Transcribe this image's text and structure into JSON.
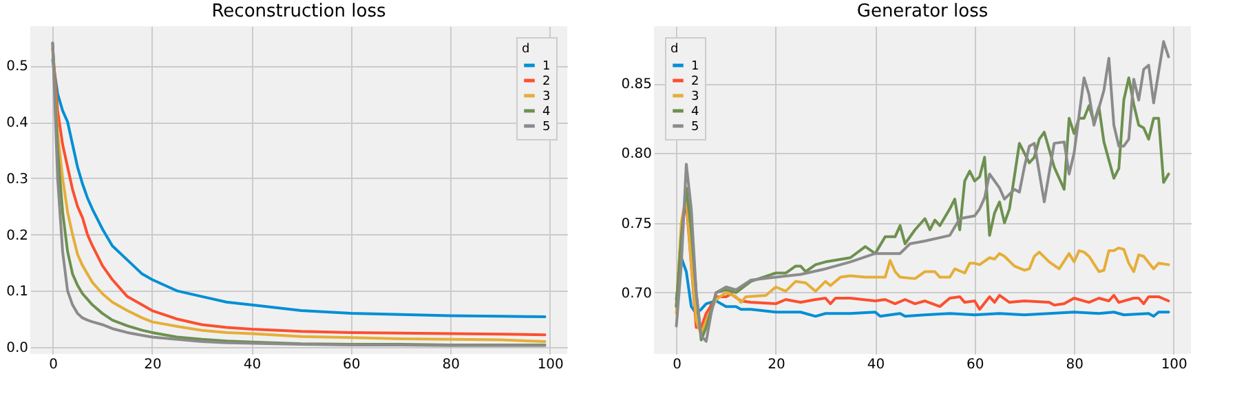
{
  "chart_data": [
    {
      "type": "line",
      "title": "Reconstruction loss",
      "legend_title": "d",
      "legend": "top right",
      "grid": true,
      "marker": "none",
      "line_style": "solid",
      "xlim": [
        -4.5,
        103.5
      ],
      "xticks": [
        0,
        20,
        40,
        60,
        80,
        100
      ],
      "ylim": [
        -0.012,
        0.57
      ],
      "yticks": [
        {
          "value": 0,
          "label": "0.0"
        },
        0.1,
        0.2,
        0.3,
        0.4,
        0.5
      ],
      "series": [
        {
          "name": "1",
          "color": "#008fd5",
          "x": [
            0,
            1,
            2,
            3,
            4,
            5,
            6,
            7,
            8,
            10,
            12,
            15,
            18,
            20,
            25,
            30,
            35,
            40,
            50,
            60,
            70,
            80,
            90,
            99
          ],
          "values": [
            0.51,
            0.45,
            0.42,
            0.4,
            0.36,
            0.32,
            0.29,
            0.265,
            0.245,
            0.21,
            0.18,
            0.155,
            0.13,
            0.12,
            0.1,
            0.09,
            0.08,
            0.075,
            0.065,
            0.06,
            0.058,
            0.056,
            0.055,
            0.054
          ]
        },
        {
          "name": "2",
          "color": "#fc4f30",
          "x": [
            0,
            1,
            2,
            3,
            4,
            5,
            6,
            7,
            8,
            10,
            12,
            15,
            18,
            20,
            25,
            30,
            35,
            40,
            50,
            60,
            70,
            80,
            90,
            99
          ],
          "values": [
            0.53,
            0.42,
            0.36,
            0.32,
            0.28,
            0.25,
            0.23,
            0.2,
            0.18,
            0.145,
            0.12,
            0.09,
            0.075,
            0.065,
            0.05,
            0.04,
            0.035,
            0.032,
            0.028,
            0.026,
            0.025,
            0.024,
            0.023,
            0.022
          ]
        },
        {
          "name": "3",
          "color": "#e5ae38",
          "x": [
            0,
            1,
            2,
            3,
            4,
            5,
            6,
            7,
            8,
            10,
            12,
            15,
            18,
            20,
            25,
            30,
            35,
            40,
            50,
            60,
            70,
            80,
            90,
            99
          ],
          "values": [
            0.53,
            0.38,
            0.3,
            0.24,
            0.2,
            0.165,
            0.145,
            0.13,
            0.115,
            0.095,
            0.08,
            0.065,
            0.052,
            0.045,
            0.037,
            0.03,
            0.026,
            0.024,
            0.019,
            0.017,
            0.015,
            0.014,
            0.013,
            0.01
          ]
        },
        {
          "name": "4",
          "color": "#6d904f",
          "x": [
            0,
            1,
            2,
            3,
            4,
            5,
            6,
            7,
            8,
            10,
            12,
            15,
            18,
            20,
            25,
            30,
            35,
            40,
            50,
            60,
            70,
            80,
            90,
            99
          ],
          "values": [
            0.54,
            0.35,
            0.24,
            0.17,
            0.13,
            0.11,
            0.095,
            0.085,
            0.075,
            0.06,
            0.048,
            0.038,
            0.03,
            0.026,
            0.018,
            0.014,
            0.011,
            0.009,
            0.006,
            0.005,
            0.005,
            0.004,
            0.004,
            0.004
          ]
        },
        {
          "name": "5",
          "color": "#8b8b8b",
          "x": [
            0,
            1,
            2,
            3,
            4,
            5,
            6,
            7,
            8,
            10,
            12,
            15,
            18,
            20,
            25,
            30,
            35,
            40,
            50,
            60,
            70,
            80,
            90,
            99
          ],
          "values": [
            0.54,
            0.3,
            0.17,
            0.1,
            0.075,
            0.06,
            0.052,
            0.048,
            0.045,
            0.04,
            0.033,
            0.026,
            0.021,
            0.018,
            0.014,
            0.01,
            0.008,
            0.007,
            0.005,
            0.004,
            0.004,
            0.003,
            0.003,
            0.003
          ]
        }
      ]
    },
    {
      "type": "line",
      "title": "Generator loss",
      "legend_title": "d",
      "legend": "top left",
      "grid": true,
      "marker": "none",
      "line_style": "solid",
      "xlim": [
        -4.5,
        103.5
      ],
      "xticks": [
        0,
        20,
        40,
        60,
        80,
        100
      ],
      "ylim": [
        0.656,
        0.891
      ],
      "yticks": [
        {
          "value": 0.7,
          "label": "0.70"
        },
        0.75,
        {
          "value": 0.8,
          "label": "0.80"
        },
        0.85
      ],
      "series": [
        {
          "name": "1",
          "color": "#008fd5",
          "x": [
            0,
            1,
            2,
            3,
            4,
            5,
            6,
            8,
            10,
            12,
            13,
            15,
            20,
            22,
            25,
            28,
            30,
            35,
            40,
            41,
            45,
            46,
            50,
            55,
            60,
            65,
            70,
            75,
            80,
            85,
            88,
            90,
            95,
            96,
            97,
            99
          ],
          "values": [
            0.695,
            0.725,
            0.715,
            0.69,
            0.685,
            0.688,
            0.692,
            0.694,
            0.69,
            0.69,
            0.688,
            0.688,
            0.686,
            0.686,
            0.686,
            0.683,
            0.685,
            0.685,
            0.686,
            0.683,
            0.685,
            0.683,
            0.684,
            0.685,
            0.684,
            0.685,
            0.684,
            0.685,
            0.686,
            0.685,
            0.686,
            0.684,
            0.685,
            0.683,
            0.686,
            0.686
          ]
        },
        {
          "name": "2",
          "color": "#fc4f30",
          "x": [
            0,
            1,
            2,
            3,
            4,
            5,
            6,
            8,
            10,
            11,
            13,
            15,
            20,
            22,
            25,
            28,
            30,
            31,
            32,
            35,
            40,
            42,
            44,
            46,
            48,
            50,
            53,
            55,
            57,
            58,
            60,
            61,
            63,
            64,
            65,
            67,
            70,
            75,
            76,
            78,
            80,
            83,
            85,
            87,
            88,
            89,
            92,
            93,
            94,
            95,
            97,
            99
          ],
          "values": [
            0.69,
            0.745,
            0.765,
            0.72,
            0.675,
            0.675,
            0.685,
            0.697,
            0.697,
            0.699,
            0.694,
            0.693,
            0.692,
            0.695,
            0.693,
            0.695,
            0.696,
            0.692,
            0.696,
            0.696,
            0.694,
            0.695,
            0.692,
            0.695,
            0.692,
            0.694,
            0.69,
            0.696,
            0.697,
            0.693,
            0.694,
            0.688,
            0.697,
            0.693,
            0.698,
            0.693,
            0.694,
            0.693,
            0.691,
            0.692,
            0.696,
            0.693,
            0.696,
            0.694,
            0.698,
            0.693,
            0.696,
            0.696,
            0.692,
            0.697,
            0.697,
            0.694
          ]
        },
        {
          "name": "3",
          "color": "#e5ae38",
          "x": [
            0,
            1,
            2,
            3,
            4,
            5,
            6,
            8,
            10,
            12,
            13,
            14,
            18,
            20,
            22,
            24,
            26,
            28,
            30,
            31,
            33,
            35,
            38,
            42,
            43,
            44,
            45,
            48,
            50,
            52,
            53,
            55,
            56,
            58,
            59,
            60,
            61,
            63,
            64,
            65,
            66,
            68,
            70,
            71,
            72,
            73,
            75,
            77,
            79,
            80,
            81,
            82,
            83,
            85,
            86,
            87,
            88,
            89,
            90,
            91,
            92,
            93,
            94,
            96,
            97,
            99
          ],
          "values": [
            0.685,
            0.75,
            0.77,
            0.72,
            0.68,
            0.67,
            0.68,
            0.695,
            0.7,
            0.697,
            0.693,
            0.697,
            0.698,
            0.704,
            0.701,
            0.708,
            0.707,
            0.701,
            0.708,
            0.705,
            0.711,
            0.712,
            0.711,
            0.711,
            0.723,
            0.715,
            0.711,
            0.71,
            0.715,
            0.715,
            0.711,
            0.711,
            0.717,
            0.714,
            0.721,
            0.721,
            0.72,
            0.725,
            0.724,
            0.728,
            0.726,
            0.719,
            0.716,
            0.717,
            0.726,
            0.729,
            0.722,
            0.717,
            0.728,
            0.722,
            0.73,
            0.729,
            0.726,
            0.715,
            0.716,
            0.73,
            0.73,
            0.732,
            0.731,
            0.721,
            0.715,
            0.727,
            0.726,
            0.717,
            0.721,
            0.72
          ]
        },
        {
          "name": "4",
          "color": "#6d904f",
          "x": [
            0,
            1,
            2,
            3,
            4,
            5,
            6,
            8,
            10,
            12,
            15,
            20,
            22,
            24,
            25,
            26,
            28,
            30,
            35,
            38,
            40,
            42,
            44,
            45,
            46,
            48,
            50,
            51,
            52,
            53,
            55,
            56,
            57,
            58,
            59,
            60,
            61,
            62,
            63,
            64,
            65,
            66,
            67,
            69,
            70,
            71,
            72,
            73,
            74,
            76,
            78,
            79,
            80,
            81,
            82,
            83,
            84,
            85,
            86,
            88,
            89,
            90,
            91,
            92,
            93,
            94,
            95,
            96,
            97,
            98,
            99
          ],
          "values": [
            0.69,
            0.74,
            0.775,
            0.745,
            0.7,
            0.666,
            0.675,
            0.7,
            0.702,
            0.7,
            0.708,
            0.714,
            0.714,
            0.719,
            0.719,
            0.715,
            0.72,
            0.722,
            0.725,
            0.733,
            0.728,
            0.74,
            0.74,
            0.748,
            0.735,
            0.745,
            0.753,
            0.745,
            0.752,
            0.748,
            0.76,
            0.767,
            0.745,
            0.78,
            0.787,
            0.78,
            0.783,
            0.797,
            0.741,
            0.757,
            0.765,
            0.75,
            0.76,
            0.807,
            0.8,
            0.793,
            0.797,
            0.81,
            0.815,
            0.79,
            0.774,
            0.825,
            0.814,
            0.825,
            0.825,
            0.834,
            0.822,
            0.833,
            0.808,
            0.782,
            0.789,
            0.838,
            0.854,
            0.835,
            0.82,
            0.818,
            0.81,
            0.825,
            0.825,
            0.779,
            0.785
          ]
        },
        {
          "name": "5",
          "color": "#8b8b8b",
          "x": [
            0,
            1,
            2,
            3,
            4,
            5,
            6,
            7,
            8,
            10,
            12,
            15,
            20,
            25,
            30,
            35,
            40,
            45,
            47,
            50,
            55,
            57,
            60,
            61,
            62,
            63,
            65,
            66,
            68,
            69,
            70,
            71,
            72,
            74,
            76,
            78,
            79,
            80,
            82,
            83,
            84,
            86,
            87,
            88,
            89,
            90,
            91,
            92,
            93,
            94,
            95,
            96,
            98,
            99
          ],
          "values": [
            0.676,
            0.72,
            0.792,
            0.76,
            0.7,
            0.669,
            0.665,
            0.685,
            0.7,
            0.704,
            0.702,
            0.709,
            0.711,
            0.713,
            0.717,
            0.722,
            0.728,
            0.728,
            0.735,
            0.737,
            0.741,
            0.753,
            0.755,
            0.76,
            0.768,
            0.785,
            0.775,
            0.767,
            0.774,
            0.772,
            0.79,
            0.805,
            0.807,
            0.765,
            0.807,
            0.808,
            0.785,
            0.8,
            0.854,
            0.842,
            0.82,
            0.845,
            0.868,
            0.82,
            0.805,
            0.805,
            0.81,
            0.853,
            0.838,
            0.86,
            0.863,
            0.836,
            0.88,
            0.869
          ]
        }
      ]
    }
  ]
}
